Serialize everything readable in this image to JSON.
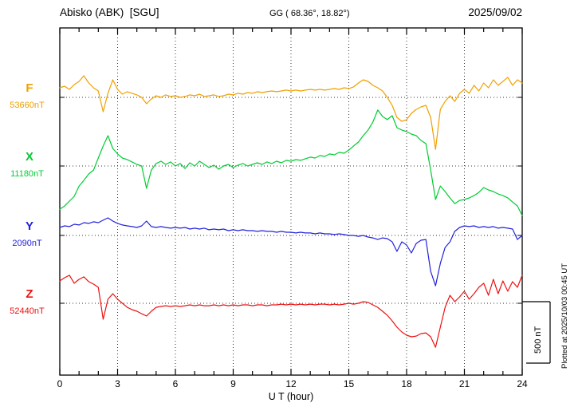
{
  "header": {
    "station": "Abisko (ABK)  [SGU]",
    "coords": "GG ( 68.36°, 18.82°)",
    "date": "2025/09/02"
  },
  "plotted_note": "Plotted at 2025/10/03 00:45 UT",
  "chart_data": {
    "type": "line",
    "title": "Abisko (ABK) [SGU] magnetogram 2025/09/02",
    "xlabel": "U T (hour)",
    "ylabel": "",
    "x_start": 0,
    "x_end": 24,
    "x_step_hours": 0.25,
    "x_minor_step": 1,
    "x_ticks": [
      0,
      3,
      6,
      9,
      12,
      15,
      18,
      21,
      24
    ],
    "grid": "dotted vertical every 3 h; dotted horizontal at each component baseline",
    "legend_position": "left margin, one colored letter per component",
    "scale_bar": {
      "label": "500 nT",
      "nt": 500
    },
    "series": [
      {
        "name": "F",
        "color": "#f0a000",
        "base_value_label": "53660nT",
        "base_value_nt": 53660,
        "values_delta_nt": [
          78,
          91,
          65,
          104,
          130,
          176,
          117,
          78,
          52,
          -117,
          33,
          143,
          65,
          26,
          46,
          33,
          20,
          0,
          -52,
          -13,
          13,
          0,
          20,
          7,
          13,
          0,
          7,
          20,
          13,
          26,
          7,
          13,
          20,
          7,
          13,
          26,
          20,
          33,
          26,
          39,
          33,
          46,
          39,
          46,
          52,
          46,
          52,
          59,
          52,
          59,
          52,
          59,
          65,
          59,
          65,
          59,
          65,
          72,
          65,
          78,
          72,
          85,
          117,
          143,
          130,
          98,
          78,
          52,
          0,
          -65,
          -163,
          -195,
          -182,
          -130,
          -98,
          -78,
          -65,
          -163,
          -423,
          -98,
          -33,
          13,
          -33,
          33,
          65,
          33,
          98,
          52,
          117,
          78,
          143,
          98,
          130,
          163,
          98,
          143,
          117
        ]
      },
      {
        "name": "X",
        "color": "#00cc33",
        "base_value_label": "11180nT",
        "base_value_nt": 11180,
        "values_delta_nt": [
          -351,
          -325,
          -286,
          -247,
          -163,
          -117,
          -65,
          -33,
          65,
          163,
          247,
          143,
          98,
          65,
          52,
          33,
          13,
          0,
          -182,
          -33,
          20,
          39,
          13,
          33,
          0,
          20,
          -20,
          26,
          0,
          39,
          13,
          -13,
          7,
          -26,
          0,
          13,
          -13,
          7,
          20,
          0,
          13,
          26,
          13,
          33,
          20,
          39,
          26,
          46,
          39,
          52,
          46,
          59,
          72,
          65,
          85,
          78,
          98,
          91,
          111,
          104,
          130,
          163,
          195,
          247,
          293,
          358,
          455,
          403,
          377,
          410,
          312,
          293,
          280,
          260,
          247,
          208,
          182,
          -33,
          -273,
          -163,
          -208,
          -260,
          -306,
          -280,
          -273,
          -260,
          -241,
          -215,
          -176,
          -195,
          -208,
          -228,
          -241,
          -260,
          -293,
          -325,
          -403
        ]
      },
      {
        "name": "Y",
        "color": "#2222dd",
        "base_value_label": "2090nT",
        "base_value_nt": 2090,
        "values_delta_nt": [
          65,
          78,
          72,
          91,
          85,
          104,
          98,
          111,
          104,
          124,
          143,
          117,
          98,
          85,
          78,
          72,
          65,
          78,
          117,
          72,
          65,
          72,
          65,
          59,
          65,
          59,
          65,
          52,
          59,
          52,
          59,
          46,
          52,
          46,
          52,
          39,
          46,
          39,
          46,
          39,
          39,
          33,
          39,
          33,
          33,
          26,
          33,
          26,
          26,
          20,
          26,
          20,
          20,
          13,
          20,
          13,
          13,
          7,
          13,
          7,
          0,
          0,
          -7,
          0,
          -13,
          -20,
          -33,
          -20,
          -26,
          -52,
          -130,
          -52,
          -78,
          -143,
          -65,
          -39,
          -33,
          -293,
          -410,
          -228,
          -98,
          -52,
          33,
          65,
          78,
          72,
          78,
          65,
          72,
          65,
          72,
          59,
          65,
          59,
          52,
          -33,
          0
        ]
      },
      {
        "name": "Z",
        "color": "#ee1111",
        "base_value_label": "52440nT",
        "base_value_nt": 52440,
        "values_delta_nt": [
          182,
          208,
          228,
          163,
          195,
          215,
          176,
          156,
          130,
          -130,
          33,
          78,
          33,
          0,
          -33,
          -52,
          -65,
          -85,
          -104,
          -65,
          -33,
          -26,
          -20,
          -26,
          -20,
          -26,
          -20,
          -13,
          -20,
          -13,
          -20,
          -20,
          -13,
          -20,
          -13,
          -20,
          -13,
          -20,
          -13,
          -13,
          -20,
          -13,
          -13,
          -20,
          -13,
          -13,
          -7,
          -13,
          -7,
          -13,
          -7,
          -13,
          -7,
          -13,
          -7,
          -7,
          -13,
          -7,
          -13,
          -7,
          0,
          -7,
          0,
          13,
          7,
          -13,
          -33,
          -65,
          -98,
          -143,
          -195,
          -234,
          -260,
          -273,
          -267,
          -247,
          -241,
          -273,
          -358,
          -195,
          -33,
          65,
          13,
          52,
          98,
          33,
          78,
          130,
          163,
          65,
          195,
          78,
          182,
          98,
          176,
          130,
          228
        ]
      }
    ]
  }
}
